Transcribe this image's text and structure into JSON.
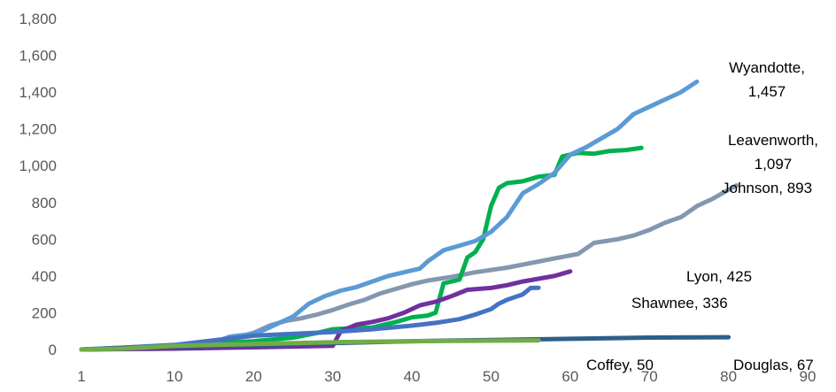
{
  "chart_data": {
    "type": "line",
    "title": "",
    "xlabel": "",
    "ylabel": "",
    "xlim": [
      1,
      90
    ],
    "ylim": [
      0,
      1800
    ],
    "x_ticks": [
      1,
      10,
      20,
      30,
      40,
      50,
      60,
      70,
      80,
      90
    ],
    "y_ticks": [
      0,
      200,
      400,
      600,
      800,
      1000,
      1200,
      1400,
      1600,
      1800
    ],
    "y_tick_labels": [
      "0",
      "200",
      "400",
      "600",
      "800",
      "1,000",
      "1,200",
      "1,400",
      "1,600",
      "1,800"
    ],
    "grid": false,
    "legend": "none",
    "series": [
      {
        "name": "Johnson",
        "color": "#8497b0",
        "label_lines": [
          "Johnson, 893"
        ],
        "points": [
          [
            1,
            0
          ],
          [
            5,
            5
          ],
          [
            10,
            15
          ],
          [
            15,
            35
          ],
          [
            18,
            65
          ],
          [
            20,
            90
          ],
          [
            22,
            130
          ],
          [
            24,
            155
          ],
          [
            26,
            170
          ],
          [
            28,
            190
          ],
          [
            30,
            215
          ],
          [
            32,
            245
          ],
          [
            34,
            270
          ],
          [
            36,
            305
          ],
          [
            38,
            330
          ],
          [
            40,
            355
          ],
          [
            42,
            375
          ],
          [
            45,
            395
          ],
          [
            48,
            420
          ],
          [
            52,
            445
          ],
          [
            55,
            470
          ],
          [
            58,
            495
          ],
          [
            61,
            520
          ],
          [
            63,
            580
          ],
          [
            66,
            600
          ],
          [
            68,
            620
          ],
          [
            70,
            650
          ],
          [
            72,
            690
          ],
          [
            74,
            720
          ],
          [
            76,
            780
          ],
          [
            78,
            820
          ],
          [
            81,
            893
          ]
        ]
      },
      {
        "name": "Leavenworth",
        "color": "#00b050",
        "label_lines": [
          "Leavenworth,",
          "1,097"
        ],
        "points": [
          [
            1,
            0
          ],
          [
            5,
            10
          ],
          [
            10,
            20
          ],
          [
            15,
            35
          ],
          [
            20,
            45
          ],
          [
            25,
            65
          ],
          [
            28,
            90
          ],
          [
            30,
            110
          ],
          [
            32,
            115
          ],
          [
            35,
            120
          ],
          [
            38,
            150
          ],
          [
            40,
            175
          ],
          [
            42,
            185
          ],
          [
            43,
            200
          ],
          [
            44,
            360
          ],
          [
            46,
            380
          ],
          [
            47,
            500
          ],
          [
            48,
            530
          ],
          [
            49,
            600
          ],
          [
            50,
            780
          ],
          [
            51,
            880
          ],
          [
            52,
            905
          ],
          [
            54,
            915
          ],
          [
            56,
            940
          ],
          [
            58,
            950
          ],
          [
            59,
            1050
          ],
          [
            61,
            1070
          ],
          [
            63,
            1065
          ],
          [
            65,
            1080
          ],
          [
            67,
            1085
          ],
          [
            69,
            1097
          ]
        ]
      },
      {
        "name": "Wyandotte",
        "color": "#5b9bd5",
        "label_lines": [
          "Wyandotte,",
          "1,457"
        ],
        "points": [
          [
            1,
            0
          ],
          [
            5,
            5
          ],
          [
            10,
            15
          ],
          [
            15,
            40
          ],
          [
            17,
            70
          ],
          [
            19,
            80
          ],
          [
            21,
            100
          ],
          [
            23,
            140
          ],
          [
            25,
            180
          ],
          [
            27,
            250
          ],
          [
            29,
            290
          ],
          [
            31,
            320
          ],
          [
            33,
            340
          ],
          [
            35,
            370
          ],
          [
            37,
            400
          ],
          [
            39,
            420
          ],
          [
            41,
            440
          ],
          [
            42,
            480
          ],
          [
            44,
            540
          ],
          [
            46,
            565
          ],
          [
            48,
            590
          ],
          [
            50,
            640
          ],
          [
            52,
            720
          ],
          [
            54,
            850
          ],
          [
            56,
            900
          ],
          [
            58,
            960
          ],
          [
            60,
            1060
          ],
          [
            62,
            1100
          ],
          [
            64,
            1150
          ],
          [
            66,
            1200
          ],
          [
            68,
            1280
          ],
          [
            70,
            1320
          ],
          [
            72,
            1360
          ],
          [
            74,
            1400
          ],
          [
            76,
            1457
          ]
        ]
      },
      {
        "name": "Lyon",
        "color": "#7030a0",
        "label_lines": [
          "Lyon, 425"
        ],
        "points": [
          [
            1,
            0
          ],
          [
            10,
            5
          ],
          [
            20,
            12
          ],
          [
            30,
            20
          ],
          [
            31,
            100
          ],
          [
            33,
            135
          ],
          [
            35,
            150
          ],
          [
            37,
            170
          ],
          [
            39,
            200
          ],
          [
            41,
            240
          ],
          [
            43,
            260
          ],
          [
            45,
            290
          ],
          [
            47,
            325
          ],
          [
            50,
            335
          ],
          [
            52,
            350
          ],
          [
            54,
            370
          ],
          [
            56,
            385
          ],
          [
            58,
            400
          ],
          [
            60,
            425
          ]
        ]
      },
      {
        "name": "Shawnee",
        "color": "#4472c4",
        "label_lines": [
          "Shawnee, 336"
        ],
        "points": [
          [
            1,
            0
          ],
          [
            5,
            10
          ],
          [
            10,
            25
          ],
          [
            15,
            50
          ],
          [
            20,
            75
          ],
          [
            25,
            85
          ],
          [
            30,
            95
          ],
          [
            35,
            110
          ],
          [
            40,
            130
          ],
          [
            43,
            145
          ],
          [
            46,
            165
          ],
          [
            48,
            190
          ],
          [
            50,
            220
          ],
          [
            51,
            250
          ],
          [
            52,
            270
          ],
          [
            53,
            285
          ],
          [
            54,
            300
          ],
          [
            55,
            335
          ],
          [
            56,
            336
          ]
        ]
      },
      {
        "name": "Douglas",
        "color": "#2e5f8a",
        "label_lines": [
          "Douglas, 67"
        ],
        "points": [
          [
            1,
            0
          ],
          [
            10,
            15
          ],
          [
            20,
            25
          ],
          [
            30,
            35
          ],
          [
            40,
            45
          ],
          [
            50,
            52
          ],
          [
            60,
            58
          ],
          [
            70,
            65
          ],
          [
            80,
            67
          ]
        ]
      },
      {
        "name": "Coffey",
        "color": "#70ad47",
        "label_lines": [
          "Coffey, 50"
        ],
        "points": [
          [
            1,
            0
          ],
          [
            5,
            5
          ],
          [
            10,
            20
          ],
          [
            20,
            30
          ],
          [
            30,
            40
          ],
          [
            40,
            45
          ],
          [
            50,
            48
          ],
          [
            56,
            50
          ]
        ]
      }
    ]
  }
}
